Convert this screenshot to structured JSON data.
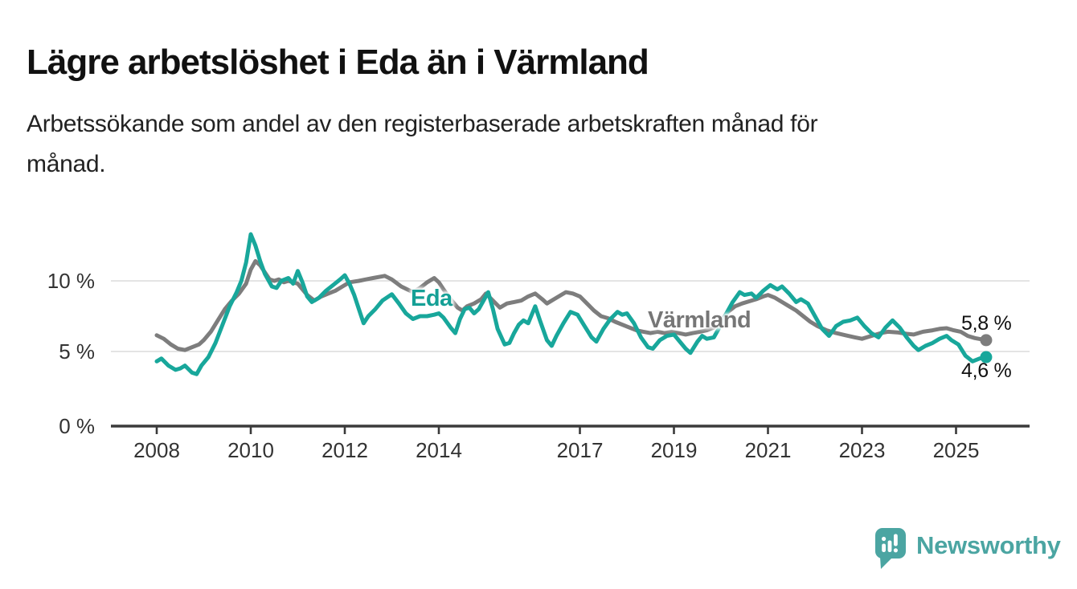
{
  "header": {
    "title": "Lägre arbetslöshet i Eda än i Värmland",
    "subtitle_lines": [
      "Arbetssökande som andel av den registerbaserade arbetskraften månad för",
      "månad."
    ]
  },
  "chart_data": {
    "type": "line",
    "title": "Lägre arbetslöshet i Eda än i Värmland",
    "xlabel": "",
    "ylabel": "Arbetssökande som andel av den registerbaserade arbetskraften",
    "x_unit": "decimal year, monthly data",
    "y_unit": "percent",
    "xlim": [
      2007.0,
      2026.6
    ],
    "ylim": [
      0,
      14
    ],
    "grid": "horizontal-light",
    "legend_position": "inline-labels",
    "x_ticks": [
      {
        "value": 2008,
        "label": "2008"
      },
      {
        "value": 2010,
        "label": "2010"
      },
      {
        "value": 2012,
        "label": "2012"
      },
      {
        "value": 2014,
        "label": "2014"
      },
      {
        "value": 2017,
        "label": "2017"
      },
      {
        "value": 2019,
        "label": "2019"
      },
      {
        "value": 2021,
        "label": "2021"
      },
      {
        "value": 2023,
        "label": "2023"
      },
      {
        "value": 2025,
        "label": "2025"
      }
    ],
    "y_ticks": [
      {
        "value": 0,
        "label": "0 %"
      },
      {
        "value": 5,
        "label": "5 %"
      },
      {
        "value": 10,
        "label": "10 %"
      }
    ],
    "series": [
      {
        "name": "Värmland",
        "color": "#7d7d7d",
        "end_value": 5.8,
        "end_label": "5,8 %",
        "points": [
          [
            2008.0,
            6.15
          ],
          [
            2008.15,
            5.9
          ],
          [
            2008.3,
            5.5
          ],
          [
            2008.45,
            5.2
          ],
          [
            2008.6,
            5.1
          ],
          [
            2008.75,
            5.3
          ],
          [
            2008.9,
            5.5
          ],
          [
            2009.0,
            5.8
          ],
          [
            2009.15,
            6.4
          ],
          [
            2009.3,
            7.2
          ],
          [
            2009.45,
            8.0
          ],
          [
            2009.6,
            8.6
          ],
          [
            2009.75,
            9.1
          ],
          [
            2009.9,
            9.8
          ],
          [
            2010.0,
            10.8
          ],
          [
            2010.1,
            11.4
          ],
          [
            2010.2,
            11.1
          ],
          [
            2010.3,
            10.6
          ],
          [
            2010.4,
            10.1
          ],
          [
            2010.5,
            10.0
          ],
          [
            2010.6,
            10.1
          ],
          [
            2010.7,
            9.9
          ],
          [
            2010.8,
            10.0
          ],
          [
            2010.9,
            9.9
          ],
          [
            2011.0,
            9.8
          ],
          [
            2011.1,
            9.4
          ],
          [
            2011.2,
            9.0
          ],
          [
            2011.35,
            8.6
          ],
          [
            2011.5,
            8.9
          ],
          [
            2011.65,
            9.1
          ],
          [
            2011.8,
            9.3
          ],
          [
            2011.95,
            9.6
          ],
          [
            2012.1,
            9.9
          ],
          [
            2012.3,
            10.0
          ],
          [
            2012.45,
            10.1
          ],
          [
            2012.6,
            10.2
          ],
          [
            2012.85,
            10.35
          ],
          [
            2013.0,
            10.1
          ],
          [
            2013.2,
            9.6
          ],
          [
            2013.45,
            9.2
          ],
          [
            2013.6,
            9.5
          ],
          [
            2013.75,
            9.9
          ],
          [
            2013.9,
            10.2
          ],
          [
            2014.0,
            9.9
          ],
          [
            2014.1,
            9.4
          ],
          [
            2014.25,
            8.7
          ],
          [
            2014.4,
            8.1
          ],
          [
            2014.5,
            7.9
          ],
          [
            2014.6,
            8.2
          ],
          [
            2014.75,
            8.4
          ],
          [
            2014.9,
            8.7
          ],
          [
            2015.0,
            9.1
          ],
          [
            2015.15,
            8.6
          ],
          [
            2015.3,
            8.1
          ],
          [
            2015.45,
            8.4
          ],
          [
            2015.6,
            8.5
          ],
          [
            2015.75,
            8.6
          ],
          [
            2015.9,
            8.9
          ],
          [
            2016.05,
            9.1
          ],
          [
            2016.2,
            8.7
          ],
          [
            2016.3,
            8.4
          ],
          [
            2016.45,
            8.7
          ],
          [
            2016.6,
            9.0
          ],
          [
            2016.7,
            9.2
          ],
          [
            2016.85,
            9.1
          ],
          [
            2017.0,
            8.9
          ],
          [
            2017.15,
            8.4
          ],
          [
            2017.3,
            7.9
          ],
          [
            2017.45,
            7.5
          ],
          [
            2017.6,
            7.35
          ],
          [
            2017.75,
            7.1
          ],
          [
            2017.9,
            6.9
          ],
          [
            2018.05,
            6.7
          ],
          [
            2018.2,
            6.5
          ],
          [
            2018.35,
            6.4
          ],
          [
            2018.5,
            6.3
          ],
          [
            2018.65,
            6.4
          ],
          [
            2018.8,
            6.3
          ],
          [
            2018.95,
            6.4
          ],
          [
            2019.1,
            6.3
          ],
          [
            2019.25,
            6.2
          ],
          [
            2019.4,
            6.3
          ],
          [
            2019.55,
            6.4
          ],
          [
            2019.7,
            6.5
          ],
          [
            2019.85,
            6.7
          ],
          [
            2020.0,
            7.2
          ],
          [
            2020.15,
            7.8
          ],
          [
            2020.3,
            8.2
          ],
          [
            2020.45,
            8.4
          ],
          [
            2020.6,
            8.55
          ],
          [
            2020.75,
            8.7
          ],
          [
            2020.9,
            8.9
          ],
          [
            2021.0,
            9.0
          ],
          [
            2021.15,
            8.8
          ],
          [
            2021.3,
            8.5
          ],
          [
            2021.45,
            8.2
          ],
          [
            2021.6,
            7.9
          ],
          [
            2021.75,
            7.5
          ],
          [
            2021.9,
            7.1
          ],
          [
            2022.05,
            6.8
          ],
          [
            2022.25,
            6.5
          ],
          [
            2022.45,
            6.3
          ],
          [
            2022.65,
            6.15
          ],
          [
            2022.85,
            6.0
          ],
          [
            2023.0,
            5.9
          ],
          [
            2023.2,
            6.1
          ],
          [
            2023.4,
            6.3
          ],
          [
            2023.55,
            6.4
          ],
          [
            2023.75,
            6.35
          ],
          [
            2023.95,
            6.25
          ],
          [
            2024.1,
            6.2
          ],
          [
            2024.3,
            6.4
          ],
          [
            2024.5,
            6.5
          ],
          [
            2024.65,
            6.6
          ],
          [
            2024.8,
            6.65
          ],
          [
            2024.95,
            6.5
          ],
          [
            2025.1,
            6.4
          ],
          [
            2025.25,
            6.1
          ],
          [
            2025.4,
            5.95
          ],
          [
            2025.64,
            5.8
          ]
        ]
      },
      {
        "name": "Eda",
        "color": "#18a79b",
        "end_value": 4.6,
        "end_label": "4,6 %",
        "points": [
          [
            2008.0,
            4.3
          ],
          [
            2008.1,
            4.5
          ],
          [
            2008.25,
            4.0
          ],
          [
            2008.4,
            3.7
          ],
          [
            2008.5,
            3.8
          ],
          [
            2008.6,
            4.0
          ],
          [
            2008.75,
            3.5
          ],
          [
            2008.85,
            3.4
          ],
          [
            2008.95,
            4.0
          ],
          [
            2009.1,
            4.6
          ],
          [
            2009.25,
            5.6
          ],
          [
            2009.4,
            6.9
          ],
          [
            2009.55,
            8.2
          ],
          [
            2009.7,
            9.2
          ],
          [
            2009.8,
            10.0
          ],
          [
            2009.9,
            11.3
          ],
          [
            2010.0,
            13.3
          ],
          [
            2010.1,
            12.5
          ],
          [
            2010.2,
            11.4
          ],
          [
            2010.3,
            10.5
          ],
          [
            2010.45,
            9.6
          ],
          [
            2010.55,
            9.5
          ],
          [
            2010.65,
            10.0
          ],
          [
            2010.8,
            10.2
          ],
          [
            2010.9,
            9.8
          ],
          [
            2011.0,
            10.7
          ],
          [
            2011.1,
            9.9
          ],
          [
            2011.2,
            8.9
          ],
          [
            2011.3,
            8.5
          ],
          [
            2011.45,
            8.8
          ],
          [
            2011.6,
            9.3
          ],
          [
            2011.75,
            9.7
          ],
          [
            2011.9,
            10.1
          ],
          [
            2012.0,
            10.4
          ],
          [
            2012.1,
            9.8
          ],
          [
            2012.2,
            9.0
          ],
          [
            2012.3,
            8.0
          ],
          [
            2012.4,
            7.0
          ],
          [
            2012.5,
            7.5
          ],
          [
            2012.65,
            8.0
          ],
          [
            2012.8,
            8.6
          ],
          [
            2013.0,
            9.05
          ],
          [
            2013.15,
            8.4
          ],
          [
            2013.3,
            7.7
          ],
          [
            2013.45,
            7.3
          ],
          [
            2013.6,
            7.5
          ],
          [
            2013.75,
            7.5
          ],
          [
            2013.9,
            7.6
          ],
          [
            2014.0,
            7.7
          ],
          [
            2014.1,
            7.4
          ],
          [
            2014.25,
            6.7
          ],
          [
            2014.35,
            6.3
          ],
          [
            2014.45,
            7.3
          ],
          [
            2014.55,
            8.0
          ],
          [
            2014.65,
            8.1
          ],
          [
            2014.75,
            7.7
          ],
          [
            2014.85,
            8.0
          ],
          [
            2014.95,
            8.6
          ],
          [
            2015.05,
            9.2
          ],
          [
            2015.15,
            8.0
          ],
          [
            2015.25,
            6.6
          ],
          [
            2015.4,
            5.5
          ],
          [
            2015.5,
            5.6
          ],
          [
            2015.6,
            6.3
          ],
          [
            2015.7,
            6.9
          ],
          [
            2015.8,
            7.2
          ],
          [
            2015.9,
            7.0
          ],
          [
            2016.05,
            8.2
          ],
          [
            2016.15,
            7.2
          ],
          [
            2016.3,
            5.8
          ],
          [
            2016.4,
            5.4
          ],
          [
            2016.5,
            6.1
          ],
          [
            2016.65,
            7.0
          ],
          [
            2016.8,
            7.8
          ],
          [
            2016.95,
            7.6
          ],
          [
            2017.1,
            6.8
          ],
          [
            2017.25,
            6.0
          ],
          [
            2017.35,
            5.7
          ],
          [
            2017.5,
            6.6
          ],
          [
            2017.65,
            7.3
          ],
          [
            2017.8,
            7.8
          ],
          [
            2017.9,
            7.6
          ],
          [
            2018.0,
            7.7
          ],
          [
            2018.15,
            7.0
          ],
          [
            2018.3,
            6.0
          ],
          [
            2018.45,
            5.3
          ],
          [
            2018.55,
            5.2
          ],
          [
            2018.7,
            5.8
          ],
          [
            2018.85,
            6.1
          ],
          [
            2019.0,
            6.2
          ],
          [
            2019.1,
            5.8
          ],
          [
            2019.25,
            5.2
          ],
          [
            2019.35,
            4.9
          ],
          [
            2019.5,
            5.7
          ],
          [
            2019.6,
            6.1
          ],
          [
            2019.7,
            5.9
          ],
          [
            2019.85,
            6.0
          ],
          [
            2019.95,
            6.6
          ],
          [
            2020.1,
            7.6
          ],
          [
            2020.25,
            8.5
          ],
          [
            2020.4,
            9.2
          ],
          [
            2020.5,
            9.0
          ],
          [
            2020.65,
            9.1
          ],
          [
            2020.75,
            8.8
          ],
          [
            2020.9,
            9.3
          ],
          [
            2021.05,
            9.7
          ],
          [
            2021.2,
            9.4
          ],
          [
            2021.3,
            9.6
          ],
          [
            2021.45,
            9.1
          ],
          [
            2021.6,
            8.5
          ],
          [
            2021.7,
            8.7
          ],
          [
            2021.85,
            8.4
          ],
          [
            2022.0,
            7.5
          ],
          [
            2022.15,
            6.6
          ],
          [
            2022.3,
            6.1
          ],
          [
            2022.45,
            6.8
          ],
          [
            2022.6,
            7.1
          ],
          [
            2022.75,
            7.2
          ],
          [
            2022.9,
            7.4
          ],
          [
            2023.05,
            6.8
          ],
          [
            2023.2,
            6.3
          ],
          [
            2023.35,
            6.0
          ],
          [
            2023.5,
            6.7
          ],
          [
            2023.65,
            7.2
          ],
          [
            2023.8,
            6.7
          ],
          [
            2023.95,
            6.0
          ],
          [
            2024.1,
            5.4
          ],
          [
            2024.2,
            5.1
          ],
          [
            2024.35,
            5.4
          ],
          [
            2024.5,
            5.6
          ],
          [
            2024.65,
            5.9
          ],
          [
            2024.8,
            6.1
          ],
          [
            2024.9,
            5.8
          ],
          [
            2025.05,
            5.5
          ],
          [
            2025.2,
            4.7
          ],
          [
            2025.35,
            4.3
          ],
          [
            2025.5,
            4.5
          ],
          [
            2025.64,
            4.6
          ]
        ]
      }
    ],
    "colors": {
      "grid": "#dcdcdc",
      "axis": "#3a3a3a",
      "tick_label": "#333333"
    }
  },
  "branding": {
    "wordmark": "Newsworthy",
    "logo_icon": "speech-bubble-bar-chart",
    "color": "#4ba5a2"
  }
}
